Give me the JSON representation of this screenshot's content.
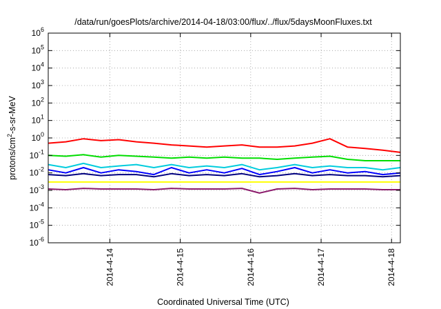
{
  "chart_data": {
    "type": "line",
    "title": "/data/run/goesPlots/archive/2014-04-18/03:00/flux/../flux/5daysMoonFluxes.txt",
    "xlabel": "Coordinated Universal Time (UTC)",
    "ylabel": "protons/cm²-s-sr-MeV",
    "yscale": "log",
    "ylim": [
      1e-06,
      1000000.0
    ],
    "xlim": [
      "2014-04-13 03:00",
      "2014-04-18 03:00"
    ],
    "grid": true,
    "legend": "none",
    "x_ticks": [
      "2014-4-14",
      "2014-4-15",
      "2014-4-16",
      "2014-4-17",
      "2014-4-18"
    ],
    "y_ticks": [
      {
        "base": "10",
        "exp": "-6",
        "value": 1e-06
      },
      {
        "base": "10",
        "exp": "-5",
        "value": 1e-05
      },
      {
        "base": "10",
        "exp": "-4",
        "value": 0.0001
      },
      {
        "base": "10",
        "exp": "-3",
        "value": 0.001
      },
      {
        "base": "10",
        "exp": "-2",
        "value": 0.01
      },
      {
        "base": "10",
        "exp": "-1",
        "value": 0.1
      },
      {
        "base": "10",
        "exp": "0",
        "value": 1
      },
      {
        "base": "10",
        "exp": "1",
        "value": 10
      },
      {
        "base": "10",
        "exp": "2",
        "value": 100
      },
      {
        "base": "10",
        "exp": "3",
        "value": 1000
      },
      {
        "base": "10",
        "exp": "4",
        "value": 10000
      },
      {
        "base": "10",
        "exp": "5",
        "value": 100000
      },
      {
        "base": "10",
        "exp": "6",
        "value": 1000000
      }
    ],
    "x": [
      "2014-04-13 03:00",
      "2014-04-13 09:00",
      "2014-04-13 15:00",
      "2014-04-13 21:00",
      "2014-04-14 03:00",
      "2014-04-14 09:00",
      "2014-04-14 15:00",
      "2014-04-14 21:00",
      "2014-04-15 03:00",
      "2014-04-15 09:00",
      "2014-04-15 15:00",
      "2014-04-15 21:00",
      "2014-04-16 03:00",
      "2014-04-16 09:00",
      "2014-04-16 15:00",
      "2014-04-16 21:00",
      "2014-04-17 03:00",
      "2014-04-17 09:00",
      "2014-04-17 15:00",
      "2014-04-17 21:00",
      "2014-04-18 03:00"
    ],
    "series": [
      {
        "color": "#ff0000",
        "values": [
          0.5,
          0.6,
          0.9,
          0.7,
          0.8,
          0.6,
          0.5,
          0.4,
          0.35,
          0.3,
          0.35,
          0.4,
          0.3,
          0.3,
          0.35,
          0.5,
          0.9,
          0.3,
          0.25,
          0.2,
          0.15
        ]
      },
      {
        "color": "#00dd00",
        "values": [
          0.1,
          0.09,
          0.11,
          0.08,
          0.1,
          0.09,
          0.08,
          0.07,
          0.08,
          0.07,
          0.08,
          0.07,
          0.07,
          0.06,
          0.07,
          0.08,
          0.09,
          0.06,
          0.05,
          0.05,
          0.05
        ]
      },
      {
        "color": "#00ccdd",
        "values": [
          0.03,
          0.02,
          0.035,
          0.02,
          0.025,
          0.03,
          0.02,
          0.03,
          0.02,
          0.025,
          0.02,
          0.03,
          0.015,
          0.02,
          0.03,
          0.02,
          0.025,
          0.02,
          0.02,
          0.015,
          0.02
        ]
      },
      {
        "color": "#0000ff",
        "values": [
          0.015,
          0.01,
          0.02,
          0.01,
          0.015,
          0.012,
          0.008,
          0.02,
          0.01,
          0.015,
          0.01,
          0.018,
          0.008,
          0.012,
          0.02,
          0.01,
          0.015,
          0.01,
          0.012,
          0.008,
          0.01
        ]
      },
      {
        "color": "#00007f",
        "values": [
          0.008,
          0.007,
          0.009,
          0.007,
          0.008,
          0.008,
          0.006,
          0.009,
          0.007,
          0.008,
          0.007,
          0.009,
          0.006,
          0.007,
          0.009,
          0.007,
          0.008,
          0.007,
          0.007,
          0.006,
          0.007
        ]
      },
      {
        "color": "#ffff00",
        "values": [
          0.003,
          0.003,
          0.003,
          0.003,
          0.003,
          0.003,
          0.003,
          0.003,
          0.003,
          0.003,
          0.003,
          0.003,
          0.003,
          0.003,
          0.003,
          0.003,
          0.003,
          0.003,
          0.003,
          0.003,
          0.003
        ]
      },
      {
        "color": "#8b1a6b",
        "values": [
          0.0012,
          0.0011,
          0.0013,
          0.0012,
          0.0012,
          0.0012,
          0.0011,
          0.0013,
          0.0012,
          0.0012,
          0.0012,
          0.0013,
          0.0007,
          0.0012,
          0.0013,
          0.0011,
          0.0012,
          0.0012,
          0.0012,
          0.0011,
          0.0011
        ]
      }
    ]
  }
}
